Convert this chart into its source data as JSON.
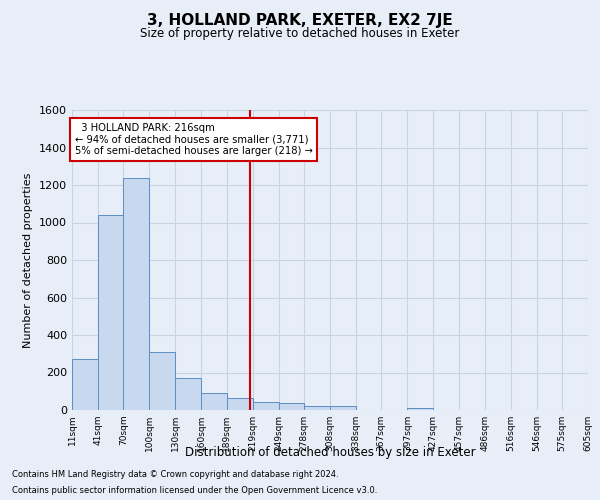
{
  "title": "3, HOLLAND PARK, EXETER, EX2 7JE",
  "subtitle": "Size of property relative to detached houses in Exeter",
  "xlabel": "Distribution of detached houses by size in Exeter",
  "ylabel": "Number of detached properties",
  "annotation_line1": "  3 HOLLAND PARK: 216sqm  ",
  "annotation_line2": "← 94% of detached houses are smaller (3,771)",
  "annotation_line3": "5% of semi-detached houses are larger (218) →",
  "property_size": 216,
  "footer_line1": "Contains HM Land Registry data © Crown copyright and database right 2024.",
  "footer_line2": "Contains public sector information licensed under the Open Government Licence v3.0.",
  "bin_labels": [
    "11sqm",
    "41sqm",
    "70sqm",
    "100sqm",
    "130sqm",
    "160sqm",
    "189sqm",
    "219sqm",
    "249sqm",
    "278sqm",
    "308sqm",
    "338sqm",
    "367sqm",
    "397sqm",
    "427sqm",
    "457sqm",
    "486sqm",
    "516sqm",
    "546sqm",
    "575sqm",
    "605sqm"
  ],
  "bin_edges": [
    11,
    41,
    70,
    100,
    130,
    160,
    189,
    219,
    249,
    278,
    308,
    338,
    367,
    397,
    427,
    457,
    486,
    516,
    546,
    575,
    605
  ],
  "bar_heights": [
    270,
    1040,
    1240,
    310,
    170,
    90,
    65,
    45,
    40,
    20,
    20,
    0,
    0,
    10,
    0,
    0,
    0,
    0,
    0,
    0
  ],
  "bar_color": "#c8d8ee",
  "bar_edge_color": "#5b8ec4",
  "grid_color": "#c8d4e4",
  "annotation_box_color": "#ffffff",
  "annotation_box_edge": "#cc0000",
  "vline_color": "#cc0000",
  "ylim": [
    0,
    1600
  ],
  "yticks": [
    0,
    200,
    400,
    600,
    800,
    1000,
    1200,
    1400,
    1600
  ],
  "background_color": "#e8eef8"
}
